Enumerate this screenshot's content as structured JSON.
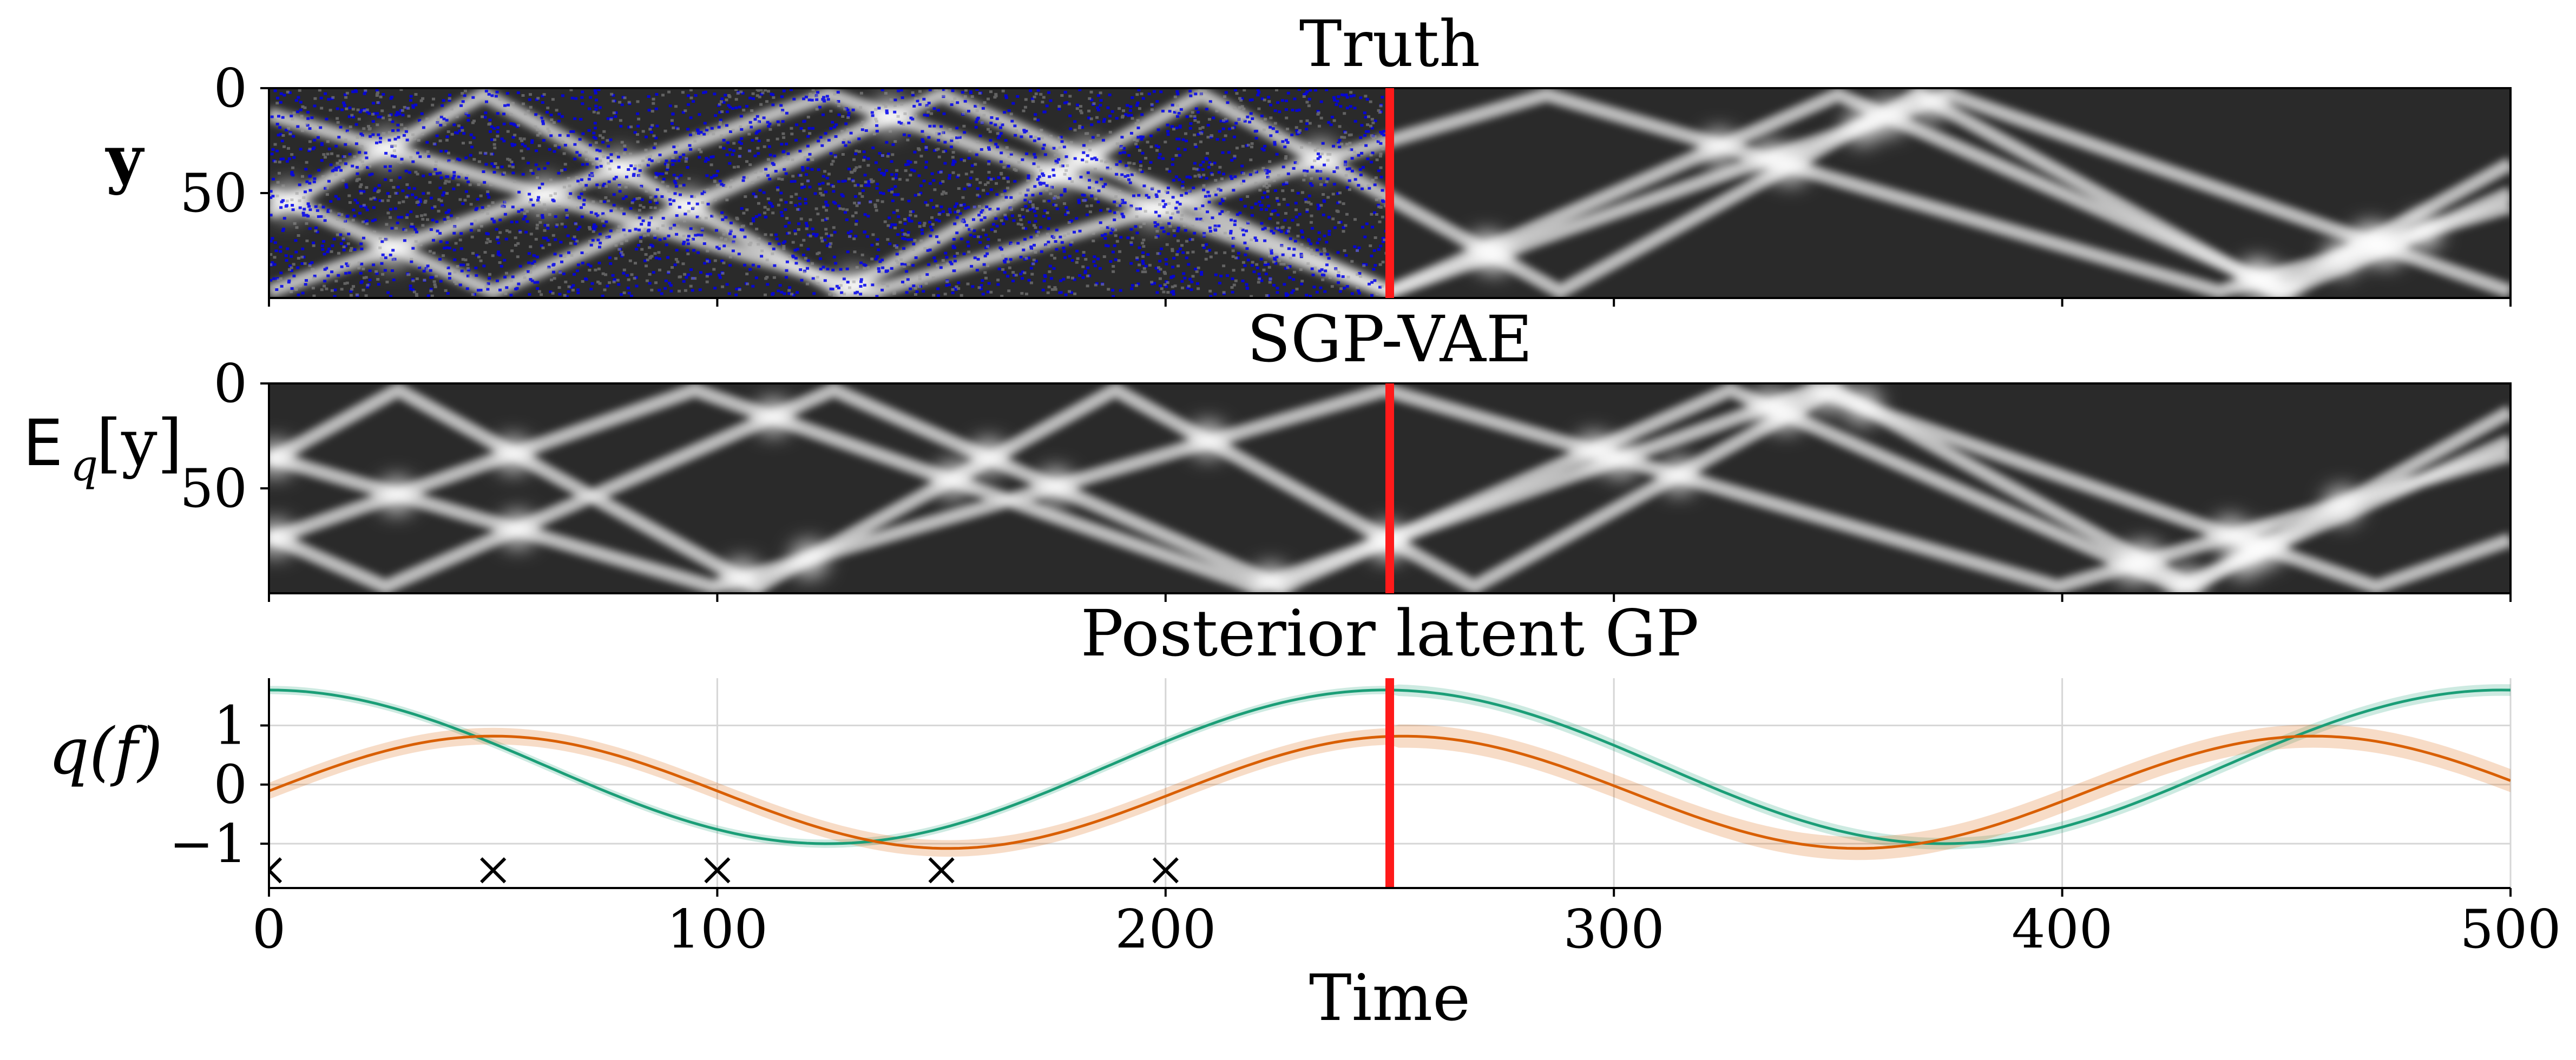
{
  "panels": {
    "truth": {
      "title": "Truth",
      "ylabel": "y"
    },
    "sgpvae": {
      "title": "SGP-VAE",
      "ylabel_prefix": "E",
      "ylabel_sub": "q",
      "ylabel_bracket": "[y]"
    },
    "latent": {
      "title": "Posterior latent GP",
      "ylabel": "q(f)"
    }
  },
  "xaxis": {
    "label": "Time"
  },
  "colors": {
    "split_line": "#ff1a1a",
    "latent_green": "#1b9e77",
    "latent_orange": "#d95f02",
    "heatmap_bg": "#2a2a2a",
    "heatmap_band": "#e6e6e6",
    "missing_marker": "#0000ee"
  },
  "chart_data": [
    {
      "type": "heatmap",
      "title": "Truth",
      "ylabel": "y",
      "xlim": [
        0,
        500
      ],
      "ylim": [
        100,
        0
      ],
      "yticks": [
        0,
        50
      ],
      "yticklabels": [
        "0",
        "50"
      ],
      "split_time": 250,
      "missing_region": "t < 250 (blue pixels mark missing observations)"
    },
    {
      "type": "heatmap",
      "title": "SGP-VAE",
      "ylabel": "E_q[y]",
      "xlim": [
        0,
        500
      ],
      "ylim": [
        100,
        0
      ],
      "yticks": [
        0,
        50
      ],
      "yticklabels": [
        "0",
        "50"
      ],
      "split_time": 250
    },
    {
      "type": "line",
      "title": "Posterior latent GP",
      "ylabel": "q(f)",
      "xlabel": "Time",
      "xlim": [
        0,
        500
      ],
      "ylim": [
        -1.75,
        1.8
      ],
      "xticks": [
        0,
        100,
        200,
        300,
        400,
        500
      ],
      "xticklabels": [
        "0",
        "100",
        "200",
        "300",
        "400",
        "500"
      ],
      "yticks": [
        -1,
        0,
        1
      ],
      "yticklabels": [
        "−1",
        "0",
        "1"
      ],
      "grid": true,
      "split_time": 250,
      "series": [
        {
          "color": "#1b9e77",
          "amplitude": 1.3,
          "offset": 0.3,
          "period": 249,
          "phase_peak_t": 0,
          "band": 0.07
        },
        {
          "color": "#d95f02",
          "amplitude": 0.95,
          "offset": -0.13,
          "period": 203,
          "phase_peak_t": 50,
          "band": 0.14
        }
      ],
      "inducing_points": {
        "x": [
          0,
          50,
          100,
          150,
          200
        ],
        "y": [
          -1.45,
          -1.45,
          -1.45,
          -1.45,
          -1.45
        ],
        "marker": "x"
      }
    }
  ]
}
